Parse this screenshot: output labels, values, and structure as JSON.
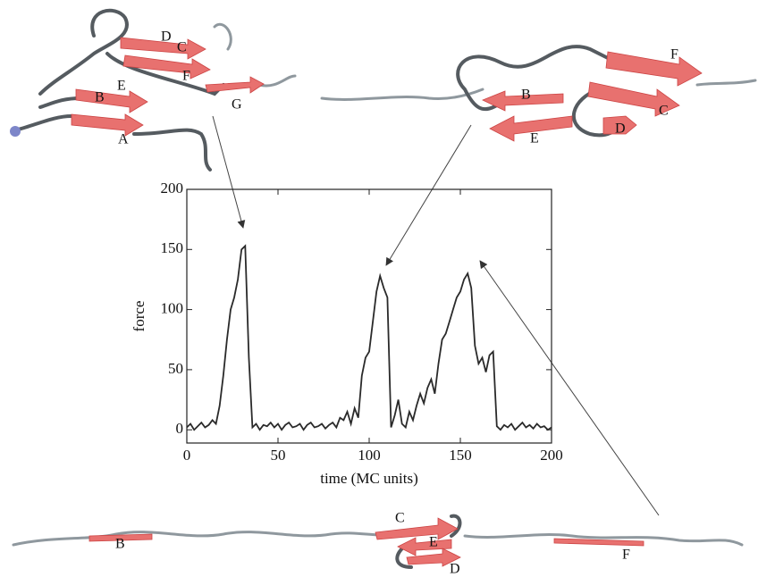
{
  "chart_data": {
    "type": "line",
    "x_label": "time (MC units)",
    "y_label": "force",
    "xlim": [
      0,
      200
    ],
    "ylim": [
      -11,
      200
    ],
    "xticks": [
      0,
      50,
      100,
      150,
      200
    ],
    "yticks": [
      0,
      50,
      100,
      150,
      200
    ],
    "color": "#2a2a2a",
    "x": [
      0,
      2,
      4,
      6,
      8,
      10,
      12,
      14,
      16,
      18,
      20,
      22,
      24,
      26,
      28,
      30,
      32,
      34,
      36,
      38,
      40,
      42,
      44,
      46,
      48,
      50,
      52,
      54,
      56,
      58,
      60,
      62,
      64,
      66,
      68,
      70,
      72,
      74,
      76,
      78,
      80,
      82,
      84,
      86,
      88,
      90,
      92,
      94,
      96,
      98,
      100,
      102,
      104,
      106,
      108,
      110,
      112,
      114,
      116,
      118,
      120,
      122,
      124,
      126,
      128,
      130,
      132,
      134,
      136,
      138,
      140,
      142,
      144,
      146,
      148,
      150,
      152,
      154,
      156,
      158,
      160,
      162,
      164,
      166,
      168,
      170,
      172,
      174,
      176,
      178,
      180,
      182,
      184,
      186,
      188,
      190,
      192,
      194,
      196,
      198,
      200
    ],
    "values": [
      2,
      5,
      0,
      3,
      6,
      2,
      4,
      8,
      5,
      20,
      45,
      75,
      100,
      110,
      125,
      150,
      153,
      60,
      2,
      5,
      0,
      4,
      3,
      6,
      2,
      5,
      0,
      4,
      6,
      2,
      3,
      5,
      0,
      4,
      6,
      2,
      3,
      5,
      1,
      4,
      6,
      2,
      10,
      8,
      15,
      5,
      18,
      10,
      45,
      60,
      65,
      90,
      115,
      128,
      118,
      110,
      2,
      12,
      25,
      5,
      2,
      15,
      8,
      20,
      30,
      22,
      35,
      42,
      30,
      55,
      75,
      80,
      90,
      100,
      110,
      115,
      125,
      130,
      118,
      70,
      55,
      60,
      48,
      62,
      65,
      3,
      0,
      4,
      2,
      5,
      0,
      3,
      6,
      2,
      4,
      1,
      5,
      2,
      3,
      0,
      2
    ],
    "structure_labels": {
      "top_left": [
        "D",
        "C",
        "F",
        "B",
        "E",
        "G",
        "A"
      ],
      "top_right": [
        "F",
        "B",
        "C",
        "E",
        "D"
      ],
      "bottom": [
        "C",
        "E",
        "D",
        "B",
        "F"
      ]
    }
  }
}
